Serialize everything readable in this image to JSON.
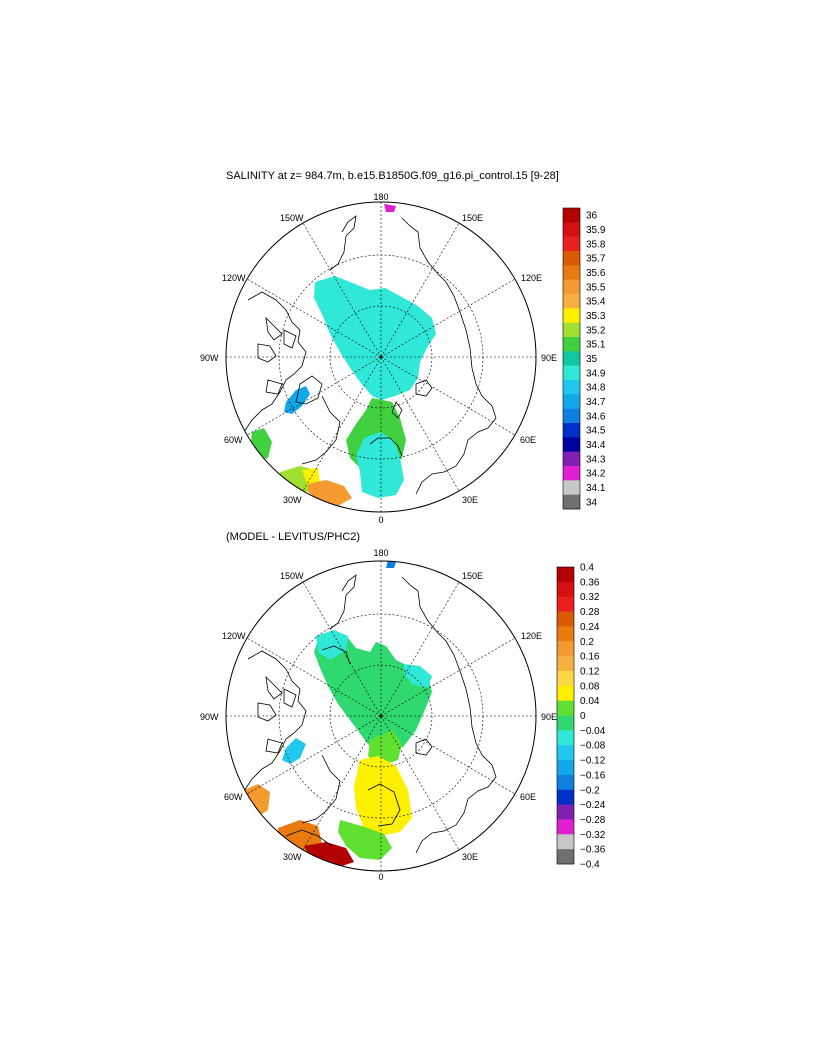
{
  "panels": [
    {
      "title": "SALINITY at z= 984.7m, b.e15.B1850G.f09_g16.pi_control.15 [9-28]",
      "lon_labels": {
        "top": "180",
        "bottom": "0",
        "left": "90W",
        "right": "90E",
        "nw1": "150W",
        "nw2": "120W",
        "ne1": "150E",
        "ne2": "120E",
        "sw1": "60W",
        "sw2": "30W",
        "se1": "60E",
        "se2": "30E"
      },
      "colorbar": {
        "labels": [
          "36",
          "35.9",
          "35.8",
          "35.7",
          "35.6",
          "35.5",
          "35.4",
          "35.3",
          "35.2",
          "35.1",
          "35",
          "34.9",
          "34.8",
          "34.7",
          "34.6",
          "34.5",
          "34.4",
          "34.3",
          "34.2",
          "34.1",
          "34"
        ],
        "colors": [
          "#b30000",
          "#d41010",
          "#ea2020",
          "#d95a00",
          "#e87a10",
          "#f59a30",
          "#f7b040",
          "#fdf000",
          "#a0e030",
          "#40d040",
          "#10c8a0",
          "#30e8d8",
          "#20c8ee",
          "#10a8e8",
          "#1080e0",
          "#0030c8",
          "#0000a0",
          "#8020b0",
          "#e020d0",
          "#c8c8c8",
          "#707070"
        ]
      }
    },
    {
      "title": "(MODEL - LEVITUS/PHC2)",
      "lon_labels": {
        "top": "180",
        "bottom": "0",
        "left": "90W",
        "right": "90E",
        "nw1": "150W",
        "nw2": "120W",
        "ne1": "150E",
        "ne2": "120E",
        "sw1": "60W",
        "sw2": "30W",
        "se1": "60E",
        "se2": "30E"
      },
      "colorbar": {
        "labels": [
          "0.4",
          "0.36",
          "0.32",
          "0.28",
          "0.24",
          "0.2",
          "0.16",
          "0.12",
          "0.08",
          "0.04",
          "0",
          "−0.04",
          "−0.08",
          "−0.12",
          "−0.16",
          "−0.2",
          "−0.24",
          "−0.28",
          "−0.32",
          "−0.36",
          "−0.4"
        ],
        "colors": [
          "#b30000",
          "#d41010",
          "#ea2020",
          "#d95a00",
          "#e87a10",
          "#f59a30",
          "#f7b040",
          "#fdd840",
          "#fdf000",
          "#60e030",
          "#30d870",
          "#30e8d8",
          "#20c8ee",
          "#10a8e8",
          "#1080e0",
          "#0030c8",
          "#8020b0",
          "#e020d0",
          "#c8c8c8",
          "#707070"
        ]
      }
    }
  ]
}
